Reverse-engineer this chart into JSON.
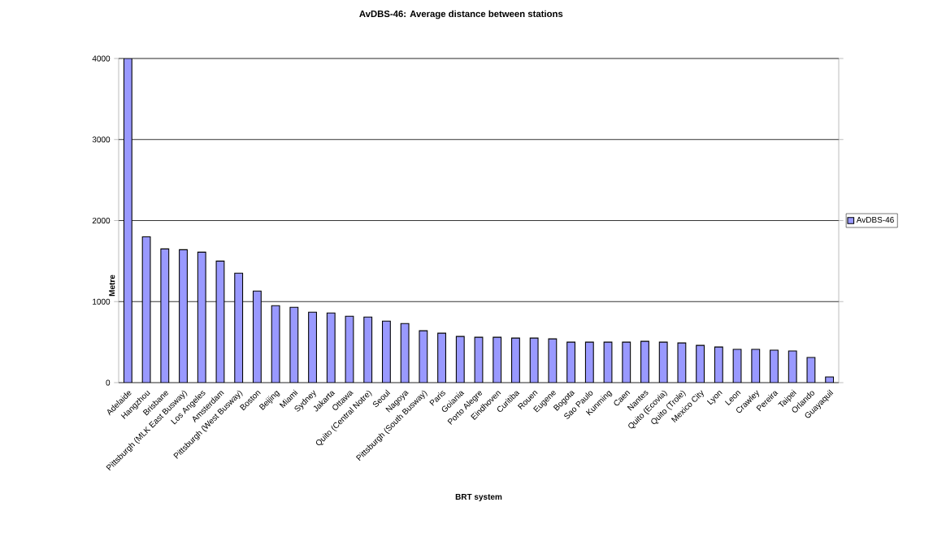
{
  "chart_data": {
    "type": "bar",
    "title": "AvDBS-46: Average distance between stations",
    "xlabel": "BRT system",
    "ylabel": "Metre",
    "categories": [
      "Adelaide",
      "Hangzhou",
      "Brisbane",
      "Pittsburgh (MLK East Busway)",
      "Los Angeles",
      "Amsterdam",
      "Pittsburgh (West Busway)",
      "Boston",
      "Beijing",
      "Miami",
      "Sydney",
      "Jakarta",
      "Ottawa",
      "Quito (Central Notre)",
      "Seoul",
      "Nagoya",
      "Pittsburgh (South Busway)",
      "Paris",
      "Goiania",
      "Porto Alegre",
      "Eindhoven",
      "Curitiba",
      "Rouen",
      "Eugene",
      "Bogota",
      "Sao Paulo",
      "Kunming",
      "Caen",
      "Nantes",
      "Quito (Ecovia)",
      "Quito (Trole)",
      "Mexico City",
      "Lyon",
      "Leon",
      "Crawley",
      "Pereira",
      "Taipei",
      "Orlando",
      "Guayaquil"
    ],
    "series": [
      {
        "name": "AvDBS-46",
        "color": "#9999ff",
        "values": [
          4000,
          1800,
          1650,
          1640,
          1610,
          1500,
          1350,
          1130,
          950,
          930,
          870,
          860,
          820,
          810,
          760,
          730,
          640,
          610,
          570,
          560,
          560,
          550,
          550,
          540,
          500,
          500,
          500,
          500,
          510,
          500,
          490,
          460,
          440,
          410,
          410,
          400,
          390,
          310,
          70
        ]
      }
    ],
    "ylim": [
      0,
      4000
    ],
    "yticks": [
      0,
      1000,
      2000,
      3000,
      4000
    ],
    "grid": "y",
    "legend": "right"
  }
}
